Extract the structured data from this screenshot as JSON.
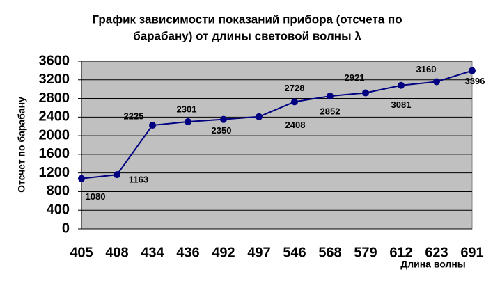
{
  "chart_data": {
    "type": "line",
    "title": [
      "График зависимости показаний прибора (отсчета по",
      "барабану) от длины световой волны λ"
    ],
    "x_label": "Длина волны",
    "y_label": "Отсчет по барабану",
    "categories": [
      "405",
      "408",
      "434",
      "436",
      "492",
      "497",
      "546",
      "568",
      "579",
      "612",
      "623",
      "691"
    ],
    "values": [
      1080,
      1163,
      2225,
      2301,
      2350,
      2408,
      2728,
      2852,
      2921,
      3081,
      3160,
      3396
    ],
    "color": "#000080",
    "ylim": [
      0,
      3600
    ],
    "yticks": [
      0,
      400,
      800,
      1200,
      1600,
      2000,
      2400,
      2800,
      3200,
      3600
    ],
    "grid": true
  }
}
